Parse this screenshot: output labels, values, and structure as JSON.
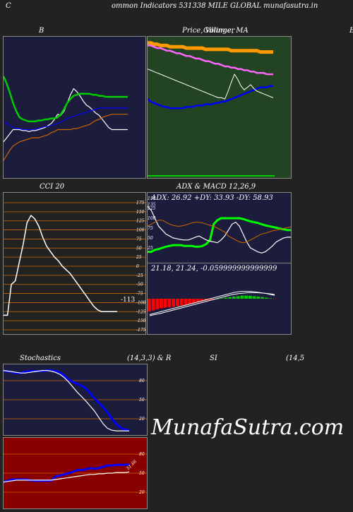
{
  "page": {
    "header": "ommon  Indicators 531338  MILE GLOBAL  munafasutra.in",
    "header_prefix": "C",
    "watermark": "MunafaSutra.com"
  },
  "panels": {
    "bollinger": {
      "title": "B"
    },
    "price": {
      "title": "Price,  Volume, MA",
      "title_overlap": "Gillinger",
      "right_edge_letter": "B"
    },
    "cci": {
      "title": "CCI 20",
      "value_label": "-113"
    },
    "adx": {
      "title": "ADX  & MACD 12,26,9",
      "adx_label": "ADX: 26.92  +DY: 33.93 -DY: 58.93",
      "macd_label": "21.18,  21.24,  -0.059999999999999"
    },
    "stoch": {
      "title_left": "Stochastics",
      "title_mid": "(14,3,3) & R",
      "title_rsi": "SI",
      "title_right": "(14,5"
    },
    "rsi": {
      "value_label": "51.66"
    }
  },
  "chart_data": [
    {
      "type": "line",
      "name": "bollinger",
      "x": [
        0,
        1,
        2,
        3,
        4,
        5,
        6,
        7,
        8,
        9,
        10,
        11,
        12,
        13,
        14,
        15,
        16,
        17,
        18,
        19,
        20,
        21,
        22,
        23,
        24,
        25,
        26,
        27,
        28,
        29,
        30,
        31,
        32,
        33,
        34,
        35,
        36,
        37,
        38,
        39
      ],
      "series": [
        {
          "name": "close",
          "color": "#ffffff",
          "values": [
            0.18,
            0.22,
            0.26,
            0.3,
            0.3,
            0.3,
            0.29,
            0.29,
            0.28,
            0.29,
            0.29,
            0.3,
            0.31,
            0.32,
            0.34,
            0.36,
            0.4,
            0.45,
            0.44,
            0.48,
            0.56,
            0.64,
            0.7,
            0.67,
            0.63,
            0.58,
            0.54,
            0.52,
            0.49,
            0.46,
            0.44,
            0.4,
            0.36,
            0.32,
            0.3,
            0.3,
            0.3,
            0.3,
            0.3,
            0.3
          ]
        },
        {
          "name": "upper",
          "color": "#00cc00",
          "values": [
            0.82,
            0.75,
            0.66,
            0.56,
            0.48,
            0.42,
            0.4,
            0.39,
            0.38,
            0.38,
            0.38,
            0.39,
            0.39,
            0.4,
            0.4,
            0.41,
            0.41,
            0.42,
            0.45,
            0.5,
            0.56,
            0.6,
            0.63,
            0.64,
            0.65,
            0.65,
            0.65,
            0.65,
            0.64,
            0.64,
            0.63,
            0.63,
            0.62,
            0.62,
            0.62,
            0.62,
            0.62,
            0.62,
            0.62,
            0.62
          ]
        },
        {
          "name": "middle",
          "color": "#0000ff",
          "values": [
            0.38,
            0.36,
            0.34,
            0.32,
            0.31,
            0.31,
            0.3,
            0.3,
            0.3,
            0.3,
            0.31,
            0.31,
            0.32,
            0.33,
            0.33,
            0.34,
            0.35,
            0.36,
            0.37,
            0.39,
            0.41,
            0.42,
            0.43,
            0.44,
            0.45,
            0.46,
            0.47,
            0.48,
            0.49,
            0.5,
            0.51,
            0.51,
            0.51,
            0.51,
            0.51,
            0.51,
            0.51,
            0.51,
            0.51,
            0.51
          ]
        },
        {
          "name": "lower",
          "color": "#cc6600",
          "values": [
            0.0,
            0.05,
            0.1,
            0.14,
            0.16,
            0.18,
            0.19,
            0.2,
            0.21,
            0.22,
            0.22,
            0.22,
            0.23,
            0.24,
            0.25,
            0.27,
            0.28,
            0.3,
            0.3,
            0.3,
            0.3,
            0.3,
            0.31,
            0.31,
            0.32,
            0.33,
            0.34,
            0.35,
            0.37,
            0.39,
            0.4,
            0.42,
            0.43,
            0.44,
            0.45,
            0.45,
            0.45,
            0.45,
            0.45,
            0.45
          ]
        }
      ]
    },
    {
      "type": "line",
      "name": "price_volume_ma",
      "x": [
        0,
        1,
        2,
        3,
        4,
        5,
        6,
        7,
        8,
        9,
        10,
        11,
        12,
        13,
        14,
        15,
        16,
        17,
        18,
        19,
        20,
        21,
        22,
        23,
        24,
        25,
        26,
        27,
        28,
        29,
        30,
        31,
        32,
        33,
        34,
        35,
        36,
        37,
        38,
        39
      ],
      "series": [
        {
          "name": "ma_long",
          "color": "#ff9900",
          "values": [
            0.98,
            0.98,
            0.97,
            0.97,
            0.96,
            0.96,
            0.96,
            0.95,
            0.95,
            0.95,
            0.95,
            0.95,
            0.94,
            0.94,
            0.94,
            0.94,
            0.94,
            0.94,
            0.93,
            0.93,
            0.93,
            0.93,
            0.93,
            0.93,
            0.93,
            0.93,
            0.92,
            0.92,
            0.92,
            0.92,
            0.92,
            0.92,
            0.92,
            0.92,
            0.92,
            0.91,
            0.91,
            0.91,
            0.91,
            0.91
          ]
        },
        {
          "name": "ma_mid",
          "color": "#ff66ff",
          "values": [
            0.96,
            0.96,
            0.95,
            0.94,
            0.94,
            0.93,
            0.92,
            0.92,
            0.91,
            0.9,
            0.9,
            0.89,
            0.88,
            0.88,
            0.87,
            0.86,
            0.86,
            0.85,
            0.84,
            0.84,
            0.83,
            0.82,
            0.82,
            0.81,
            0.8,
            0.8,
            0.79,
            0.79,
            0.78,
            0.78,
            0.77,
            0.77,
            0.76,
            0.76,
            0.75,
            0.75,
            0.75,
            0.74,
            0.74,
            0.74
          ]
        },
        {
          "name": "ma_short",
          "color": "#0000ff",
          "values": [
            0.55,
            0.53,
            0.52,
            0.51,
            0.5,
            0.49,
            0.49,
            0.48,
            0.48,
            0.48,
            0.48,
            0.48,
            0.49,
            0.49,
            0.49,
            0.5,
            0.5,
            0.5,
            0.51,
            0.51,
            0.51,
            0.52,
            0.52,
            0.53,
            0.53,
            0.54,
            0.55,
            0.56,
            0.57,
            0.58,
            0.59,
            0.6,
            0.61,
            0.62,
            0.63,
            0.64,
            0.64,
            0.64,
            0.65,
            0.65
          ]
        },
        {
          "name": "price",
          "color": "#ffffff",
          "values": [
            0.78,
            0.77,
            0.76,
            0.75,
            0.74,
            0.73,
            0.72,
            0.71,
            0.7,
            0.69,
            0.68,
            0.67,
            0.66,
            0.65,
            0.64,
            0.63,
            0.62,
            0.61,
            0.6,
            0.59,
            0.58,
            0.57,
            0.56,
            0.56,
            0.55,
            0.61,
            0.68,
            0.74,
            0.7,
            0.65,
            0.62,
            0.64,
            0.66,
            0.63,
            0.61,
            0.6,
            0.59,
            0.58,
            0.57,
            0.56
          ]
        }
      ]
    },
    {
      "type": "line",
      "name": "cci",
      "ylim": [
        -175,
        175
      ],
      "ticks": [
        175,
        150,
        125,
        100,
        75,
        50,
        25,
        0,
        -25,
        -50,
        -75,
        -100,
        -125,
        -150,
        -175
      ],
      "x": [
        0,
        1,
        2,
        3,
        4,
        5,
        6,
        7,
        8,
        9,
        10,
        11,
        12,
        13,
        14,
        15,
        16,
        17,
        18,
        19,
        20,
        21,
        22,
        23,
        24,
        25,
        26,
        27,
        28,
        29
      ],
      "series": [
        {
          "name": "cci",
          "color": "#ffffff",
          "values": [
            -135,
            -135,
            -50,
            -40,
            10,
            60,
            120,
            140,
            130,
            110,
            80,
            55,
            40,
            25,
            15,
            0,
            -10,
            -20,
            -35,
            -50,
            -65,
            -80,
            -95,
            -110,
            -120,
            -125,
            -125,
            -125,
            -125,
            -125
          ]
        }
      ]
    },
    {
      "type": "line",
      "name": "adx",
      "ylim": [
        0,
        150
      ],
      "ticks": [
        150,
        135,
        125,
        100,
        75,
        50,
        25
      ],
      "x": [
        0,
        1,
        2,
        3,
        4,
        5,
        6,
        7,
        8,
        9,
        10,
        11,
        12,
        13,
        14,
        15,
        16,
        17,
        18,
        19,
        20,
        21,
        22,
        23,
        24,
        25,
        26,
        27,
        28,
        29,
        30,
        31,
        32,
        33,
        34,
        35,
        36,
        37,
        38,
        39
      ],
      "series": [
        {
          "name": "adx",
          "color": "#00ff00",
          "values": [
            15,
            15,
            20,
            22,
            25,
            28,
            30,
            32,
            32,
            32,
            30,
            30,
            30,
            28,
            28,
            30,
            35,
            45,
            85,
            95,
            100,
            100,
            100,
            100,
            100,
            100,
            98,
            95,
            92,
            90,
            88,
            85,
            82,
            80,
            78,
            76,
            74,
            72,
            70,
            70
          ]
        },
        {
          "name": "plus_dy",
          "color": "#ffffff",
          "values": [
            130,
            120,
            100,
            80,
            70,
            60,
            55,
            50,
            48,
            46,
            45,
            45,
            48,
            52,
            55,
            50,
            45,
            42,
            40,
            38,
            45,
            55,
            70,
            85,
            90,
            80,
            60,
            40,
            25,
            20,
            15,
            12,
            15,
            22,
            30,
            40,
            45,
            50,
            52,
            52
          ]
        },
        {
          "name": "minus_dy",
          "color": "#cc6600",
          "values": [
            80,
            85,
            90,
            95,
            95,
            90,
            85,
            82,
            80,
            80,
            82,
            85,
            88,
            90,
            90,
            88,
            85,
            82,
            80,
            75,
            70,
            65,
            55,
            50,
            45,
            40,
            38,
            40,
            45,
            50,
            55,
            60,
            62,
            65,
            68,
            70,
            72,
            74,
            76,
            78
          ]
        }
      ]
    },
    {
      "type": "bar",
      "name": "macd",
      "ylim": [
        -1,
        1
      ],
      "values": [
        -0.6,
        -0.55,
        -0.5,
        -0.45,
        -0.42,
        -0.4,
        -0.38,
        -0.35,
        -0.32,
        -0.3,
        -0.26,
        -0.22,
        -0.18,
        -0.14,
        -0.1,
        -0.06,
        -0.03,
        0.0,
        0.02,
        0.05,
        0.08,
        0.1,
        0.12,
        0.15,
        0.15,
        0.14,
        0.12,
        0.1,
        0.08,
        0.05,
        0.02,
        -0.01
      ],
      "series": [
        {
          "name": "macd",
          "color": "#ffffff",
          "values": [
            -0.75,
            -0.7,
            -0.65,
            -0.6,
            -0.55,
            -0.5,
            -0.45,
            -0.4,
            -0.35,
            -0.3,
            -0.25,
            -0.2,
            -0.15,
            -0.1,
            -0.05,
            0.0,
            0.05,
            0.1,
            0.15,
            0.2,
            0.25,
            0.3,
            0.33,
            0.35,
            0.35,
            0.34,
            0.32,
            0.3,
            0.27,
            0.24,
            0.2,
            0.16
          ]
        },
        {
          "name": "signal",
          "color": "#ffffff",
          "values": [
            -0.8,
            -0.76,
            -0.72,
            -0.68,
            -0.63,
            -0.58,
            -0.53,
            -0.48,
            -0.43,
            -0.38,
            -0.33,
            -0.28,
            -0.23,
            -0.18,
            -0.13,
            -0.08,
            -0.03,
            0.02,
            0.07,
            0.12,
            0.17,
            0.21,
            0.24,
            0.26,
            0.28,
            0.29,
            0.29,
            0.28,
            0.27,
            0.25,
            0.23,
            0.2
          ]
        }
      ]
    },
    {
      "type": "line",
      "name": "stochastics",
      "ylim": [
        0,
        100
      ],
      "ticks": [
        80,
        50,
        20
      ],
      "x": [
        0,
        1,
        2,
        3,
        4,
        5,
        6,
        7,
        8,
        9,
        10,
        11,
        12,
        13,
        14,
        15,
        16,
        17,
        18,
        19,
        20,
        21,
        22,
        23,
        24,
        25,
        26,
        27,
        28,
        29
      ],
      "series": [
        {
          "name": "k",
          "color": "#0000ff",
          "values": [
            95,
            95,
            93,
            92,
            92,
            94,
            95,
            95,
            95,
            95,
            96,
            96,
            95,
            93,
            88,
            82,
            78,
            75,
            72,
            68,
            60,
            52,
            45,
            38,
            30,
            20,
            12,
            6,
            3,
            2
          ]
        },
        {
          "name": "d",
          "color": "#ffffff",
          "values": [
            96,
            95,
            94,
            93,
            92,
            92,
            93,
            94,
            95,
            96,
            96,
            95,
            93,
            90,
            85,
            78,
            70,
            62,
            55,
            48,
            40,
            32,
            22,
            12,
            5,
            2,
            1,
            1,
            1,
            1
          ]
        }
      ]
    },
    {
      "type": "line",
      "name": "rsi",
      "ylim": [
        0,
        100
      ],
      "ticks": [
        80,
        50,
        20
      ],
      "x": [
        0,
        1,
        2,
        3,
        4,
        5,
        6,
        7,
        8,
        9,
        10,
        11,
        12,
        13,
        14,
        15,
        16,
        17,
        18,
        19,
        20,
        21,
        22,
        23,
        24,
        25,
        26,
        27,
        28,
        29
      ],
      "series": [
        {
          "name": "rsi",
          "color": "#0000ff",
          "values": [
            36,
            38,
            40,
            40,
            40,
            40,
            39,
            38,
            38,
            38,
            38,
            38,
            45,
            46,
            48,
            50,
            52,
            55,
            55,
            56,
            58,
            57,
            58,
            60,
            62,
            62,
            63,
            63,
            63,
            64
          ]
        },
        {
          "name": "rsi_avg",
          "color": "#ffffff",
          "values": [
            36,
            37,
            38,
            39,
            39,
            39,
            39,
            39,
            39,
            39,
            39,
            39,
            40,
            41,
            42,
            43,
            44,
            45,
            46,
            47,
            48,
            48,
            49,
            49,
            50,
            50,
            51,
            51,
            51,
            52
          ]
        }
      ]
    }
  ]
}
